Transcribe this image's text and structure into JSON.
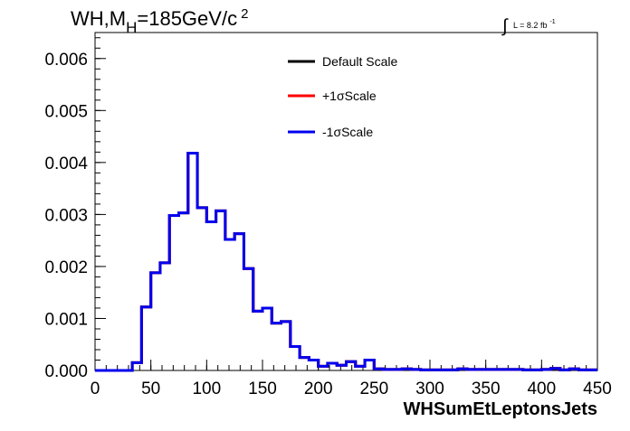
{
  "chart_data": {
    "type": "histogram",
    "title": "WH,M",
    "title_sub": "H",
    "title_rest": "=185GeV/c",
    "title_sup": "2",
    "lumi_prefix": "∫",
    "lumi_text": "L = 8.2 fb",
    "lumi_sup": "-1",
    "xlabel": "WHSumEtLeptonsJets",
    "ylabel": "",
    "xlim": [
      0,
      450
    ],
    "ylim": [
      0,
      0.0065
    ],
    "x_ticks": [
      "0",
      "50",
      "100",
      "150",
      "200",
      "250",
      "300",
      "350",
      "400",
      "450"
    ],
    "x_tick_values": [
      0,
      50,
      100,
      150,
      200,
      250,
      300,
      350,
      400,
      450
    ],
    "y_ticks": [
      "0.000",
      "0.001",
      "0.002",
      "0.003",
      "0.004",
      "0.005",
      "0.006"
    ],
    "y_tick_values": [
      0,
      0.001,
      0.002,
      0.003,
      0.004,
      0.005,
      0.006
    ],
    "bin_width": 8.333,
    "bins_start": 0,
    "series": [
      {
        "name": "Default Scale",
        "color": "#000000",
        "values": [
          0,
          0,
          0,
          0,
          0.00015,
          0.00122,
          0.00188,
          0.00207,
          0.00298,
          0.00303,
          0.00418,
          0.00313,
          0.00286,
          0.00307,
          0.00252,
          0.00263,
          0.00196,
          0.00114,
          0.0012,
          0.00091,
          0.00094,
          0.00046,
          0.00025,
          0.0002,
          8e-05,
          0.00014,
          0.0001,
          0.00017,
          8e-05,
          0.0002,
          3e-05,
          2e-05,
          2e-05,
          3e-05,
          2e-05,
          1e-05,
          1e-05,
          1e-05,
          1e-05,
          3e-05,
          2e-05,
          2e-05,
          2e-05,
          2e-05,
          2e-05,
          2e-05,
          1e-05,
          1e-05,
          2e-05,
          4e-05,
          1e-05,
          3e-05,
          1e-05,
          1e-05
        ]
      },
      {
        "name": "+1σScale",
        "color": "#ff0000",
        "values": [
          0,
          0,
          0,
          0,
          0.00015,
          0.00122,
          0.00188,
          0.00207,
          0.00298,
          0.00303,
          0.00418,
          0.00313,
          0.00286,
          0.00307,
          0.00252,
          0.00263,
          0.00196,
          0.00114,
          0.0012,
          0.00091,
          0.00094,
          0.00046,
          0.00025,
          0.0002,
          8e-05,
          0.00014,
          0.0001,
          0.00017,
          8e-05,
          0.0002,
          3e-05,
          2e-05,
          2e-05,
          3e-05,
          2e-05,
          1e-05,
          1e-05,
          1e-05,
          1e-05,
          3e-05,
          2e-05,
          2e-05,
          2e-05,
          2e-05,
          2e-05,
          2e-05,
          1e-05,
          1e-05,
          2e-05,
          4e-05,
          1e-05,
          3e-05,
          1e-05,
          1e-05
        ]
      },
      {
        "name": "-1σScale",
        "color": "#0000ee",
        "values": [
          0,
          0,
          0,
          0,
          0.00015,
          0.00122,
          0.00188,
          0.00207,
          0.00298,
          0.00303,
          0.00418,
          0.00313,
          0.00286,
          0.00307,
          0.00252,
          0.00263,
          0.00196,
          0.00114,
          0.0012,
          0.00091,
          0.00094,
          0.00046,
          0.00025,
          0.0002,
          8e-05,
          0.00014,
          0.0001,
          0.00017,
          8e-05,
          0.0002,
          3e-05,
          2e-05,
          2e-05,
          3e-05,
          2e-05,
          1e-05,
          1e-05,
          1e-05,
          1e-05,
          3e-05,
          2e-05,
          2e-05,
          2e-05,
          2e-05,
          2e-05,
          2e-05,
          1e-05,
          1e-05,
          2e-05,
          4e-05,
          1e-05,
          3e-05,
          1e-05,
          1e-05
        ]
      }
    ],
    "legend": [
      "Default Scale",
      "+1σScale",
      "-1σScale"
    ],
    "grid": false,
    "legend_placement": "top-right"
  }
}
